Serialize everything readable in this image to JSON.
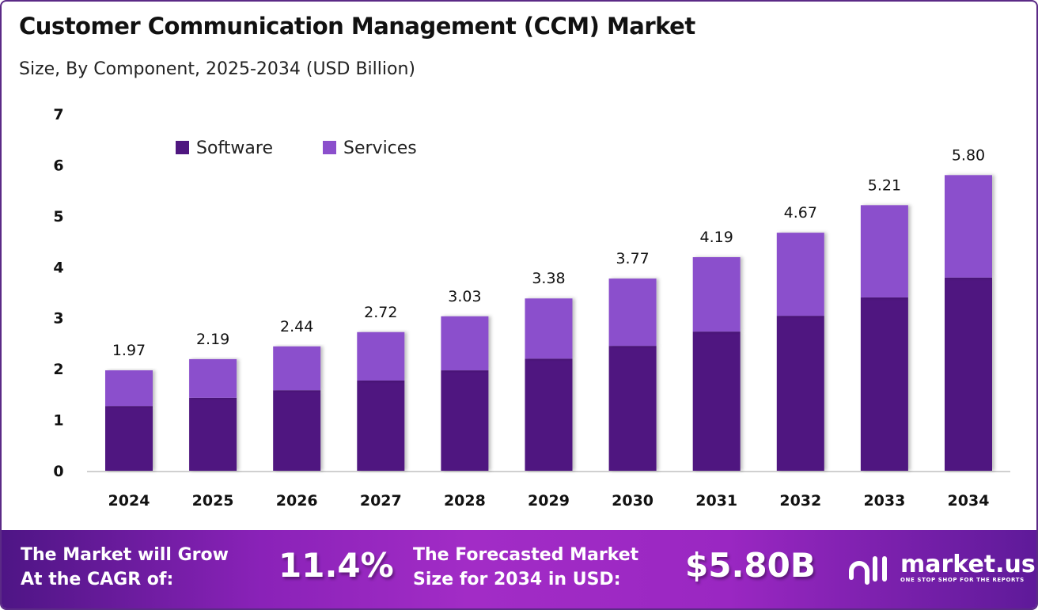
{
  "header": {
    "title": "Customer Communication Management (CCM) Market",
    "subtitle": "Size, By Component, 2025-2034 (USD Billion)"
  },
  "chart_data": {
    "type": "bar",
    "stacked": true,
    "title": "Customer Communication Management (CCM) Market",
    "subtitle": "Size, By Component, 2025-2034 (USD Billion)",
    "categories": [
      "2024",
      "2025",
      "2026",
      "2027",
      "2028",
      "2029",
      "2030",
      "2031",
      "2032",
      "2033",
      "2034"
    ],
    "series": [
      {
        "name": "Software",
        "color": "#4f1780",
        "values": [
          1.27,
          1.43,
          1.58,
          1.77,
          1.97,
          2.2,
          2.45,
          2.73,
          3.04,
          3.4,
          3.79
        ]
      },
      {
        "name": "Services",
        "color": "#8b4fcc",
        "values": [
          0.7,
          0.76,
          0.86,
          0.95,
          1.06,
          1.18,
          1.32,
          1.46,
          1.63,
          1.81,
          2.01
        ]
      }
    ],
    "totals": [
      "1.97",
      "2.19",
      "2.44",
      "2.72",
      "3.03",
      "3.38",
      "3.77",
      "4.19",
      "4.67",
      "5.21",
      "5.80"
    ],
    "ylim": [
      0,
      7
    ],
    "yticks": [
      "0",
      "1",
      "2",
      "3",
      "4",
      "5",
      "6",
      "7"
    ],
    "grid": false,
    "legend": "top-left"
  },
  "footer": {
    "cagr_label_1": "The Market will Grow",
    "cagr_label_2": "At the CAGR of:",
    "cagr_value": "11.4%",
    "forecast_label_1": "The Forecasted Market",
    "forecast_label_2": "Size for 2034 in USD:",
    "forecast_value": "$5.80B",
    "logo_name": "market.us",
    "logo_tagline": "ONE STOP SHOP FOR THE REPORTS"
  }
}
